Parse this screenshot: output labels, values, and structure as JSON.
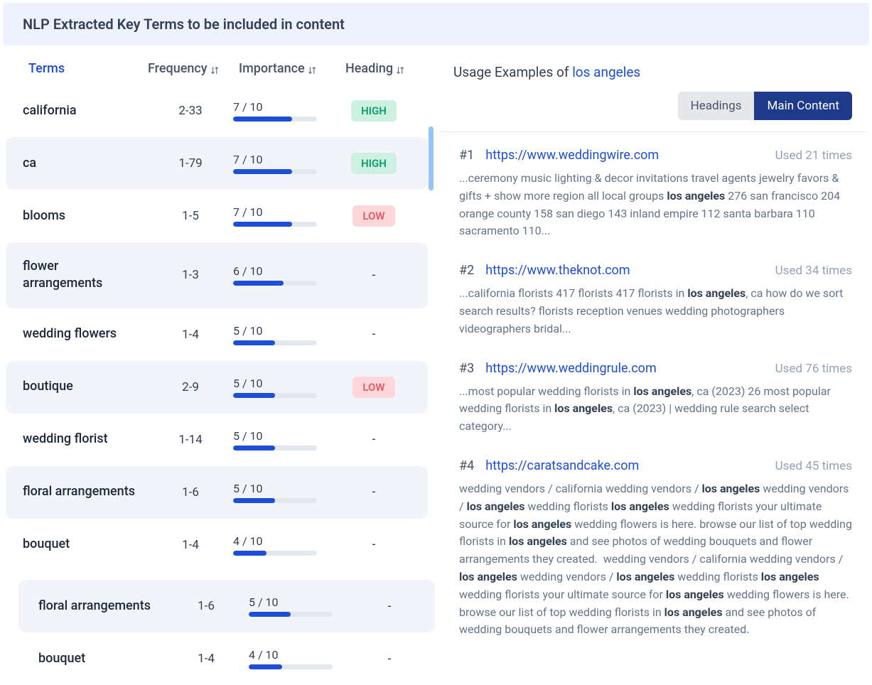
{
  "header": {
    "title": "NLP Extracted Key Terms to be included in content"
  },
  "columns": {
    "terms": "Terms",
    "freq": "Frequency",
    "imp": "Importance",
    "head": "Heading"
  },
  "colors": {
    "accent": "#1d4ed8",
    "header_bg": "#eef2ff",
    "row_alt_bg": "#f1f5f9",
    "bar_bg": "#e2e8f0",
    "bar_fill": "#1d4ed8",
    "badge_high_bg": "#ccf0e1",
    "badge_high_fg": "#0d9b6c",
    "badge_low_bg": "#ffd6d9",
    "badge_low_fg": "#e15a68",
    "tab_active_bg": "#1e3a8a",
    "tab_inactive_bg": "#e5e7eb",
    "muted_text": "#94a3b8"
  },
  "importance_max": 10,
  "terms": [
    {
      "term": "california",
      "freq": "2-33",
      "imp": 7,
      "heading": "HIGH"
    },
    {
      "term": "ca",
      "freq": "1-79",
      "imp": 7,
      "heading": "HIGH"
    },
    {
      "term": "blooms",
      "freq": "1-5",
      "imp": 7,
      "heading": "LOW"
    },
    {
      "term": "flower arrangements",
      "freq": "1-3",
      "imp": 6,
      "heading": "-"
    },
    {
      "term": "wedding flowers",
      "freq": "1-4",
      "imp": 5,
      "heading": "-"
    },
    {
      "term": "boutique",
      "freq": "2-9",
      "imp": 5,
      "heading": "LOW"
    },
    {
      "term": "wedding florist",
      "freq": "1-14",
      "imp": 5,
      "heading": "-"
    },
    {
      "term": "floral arrangements",
      "freq": "1-6",
      "imp": 5,
      "heading": "-"
    },
    {
      "term": "bouquet",
      "freq": "1-4",
      "imp": 4,
      "heading": "-"
    }
  ],
  "overlay_dup": [
    {
      "term": "floral arrangements",
      "freq": "1-6",
      "imp": 5,
      "heading": "-"
    },
    {
      "term": "bouquet",
      "freq": "1-4",
      "imp": 4,
      "heading": "-"
    }
  ],
  "usage": {
    "label_prefix": "Usage Examples of ",
    "keyword": "los angeles",
    "tabs": {
      "headings": "Headings",
      "main": "Main Content",
      "active": "main"
    },
    "used_prefix": "Used ",
    "used_suffix": " times",
    "examples": [
      {
        "num": "#1",
        "url": "https://www.weddingwire.com",
        "used": 21,
        "body": "...ceremony music lighting & decor invitations travel agents jewelry favors & gifts + show more region all local groups <b>los angeles</b> 276 san francisco 204 orange county 158 san diego 143 inland empire 112 santa barbara 110 sacramento 110..."
      },
      {
        "num": "#2",
        "url": "https://www.theknot.com",
        "used": 34,
        "body": "...california florists 417 florists 417 florists in <b>los angeles</b>, ca how do we sort search results? florists reception venues wedding photographers videographers bridal..."
      },
      {
        "num": "#3",
        "url": "https://www.weddingrule.com",
        "used": 76,
        "body": "...most popular wedding florists in <b>los angeles</b>, ca (2023) 26 most popular wedding florists in <b>los angeles</b>, ca (2023) | wedding rule search select category..."
      },
      {
        "num": "#4",
        "url": "https://caratsandcake.com",
        "used": 45,
        "body": "wedding vendors / california wedding vendors / <b>los angeles</b> wedding vendors / <b>los angeles</b> wedding florists <b>los angeles</b> wedding florists your ultimate source for <b>los angeles</b> wedding flowers is here. browse our list of top wedding florists in <b>los angeles</b> and see photos of wedding bouquets and flower arrangements they created. &nbsp;wedding vendors / california wedding vendors / <b>los angeles</b> wedding vendors / <b>los angeles</b> wedding florists <b>los angeles</b> wedding florists your ultimate source for <b>los angeles</b> wedding flowers is here. browse our list of top wedding florists in <b>los angeles</b> and see photos of wedding bouquets and flower arrangements they created."
      }
    ]
  }
}
